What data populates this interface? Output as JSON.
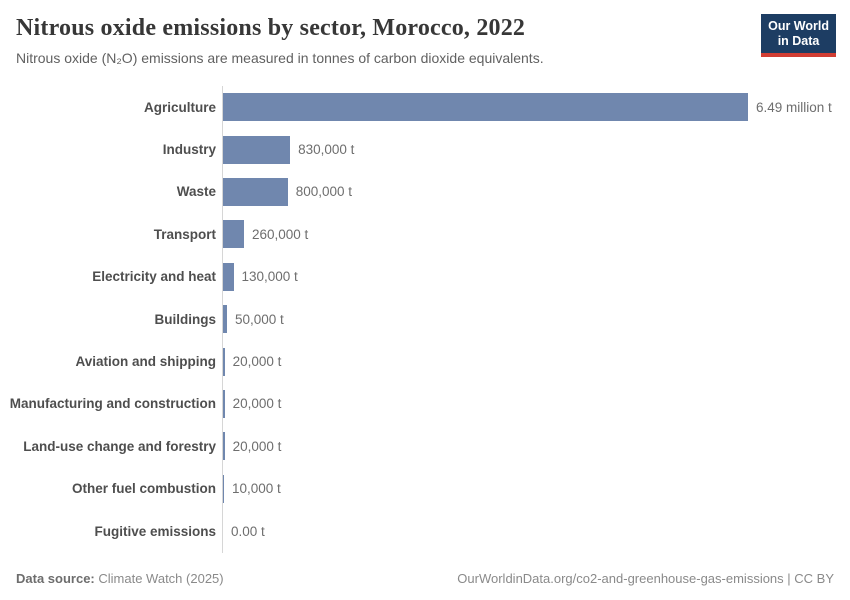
{
  "header": {
    "title": "Nitrous oxide emissions by sector, Morocco, 2022",
    "subtitle": "Nitrous oxide (N₂O) emissions are measured in tonnes of carbon dioxide equivalents.",
    "logo": {
      "line1": "Our World",
      "line2": "in Data"
    }
  },
  "chart_data": {
    "type": "bar",
    "orientation": "horizontal",
    "title": "Nitrous oxide emissions by sector, Morocco, 2022",
    "subtitle": "Nitrous oxide (N₂O) emissions are measured in tonnes of carbon dioxide equivalents.",
    "categories": [
      "Agriculture",
      "Industry",
      "Waste",
      "Transport",
      "Electricity and heat",
      "Buildings",
      "Aviation and shipping",
      "Manufacturing and construction",
      "Land-use change and forestry",
      "Other fuel combustion",
      "Fugitive emissions"
    ],
    "values": [
      6490000,
      830000,
      800000,
      260000,
      130000,
      50000,
      20000,
      20000,
      20000,
      10000,
      0
    ],
    "value_labels": [
      "6.49 million t",
      "830,000 t",
      "800,000 t",
      "260,000 t",
      "130,000 t",
      "50,000 t",
      "20,000 t",
      "20,000 t",
      "20,000 t",
      "10,000 t",
      "0.00 t"
    ],
    "xlim": [
      0,
      6490000
    ],
    "grid": false,
    "legend": "none",
    "bar_color": "#7087ae"
  },
  "footer": {
    "data_source_label": "Data source:",
    "data_source": "Climate Watch (2025)",
    "right_text": "OurWorldinData.org/co2-and-greenhouse-gas-emissions | CC BY"
  },
  "colors": {
    "bar": "#7087ae",
    "axis_line": "#d6d6d6",
    "logo_bg": "#1d3d63",
    "logo_accent": "#d13d33",
    "title": "#373737",
    "subtitle": "#616161",
    "category_label": "#4e4e4e",
    "value_label": "#6e6e6e",
    "footer_text": "#8a8a8a"
  }
}
